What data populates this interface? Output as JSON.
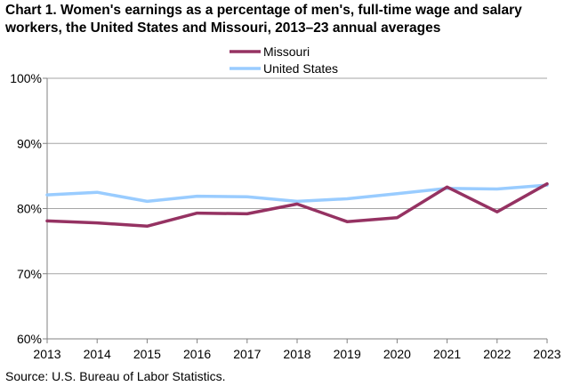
{
  "chart_data": {
    "type": "line",
    "title": "Chart 1. Women's earnings as a percentage of men's, full-time wage and salary workers, the United States and Missouri, 2013–23 annual averages",
    "xlabel": "",
    "ylabel": "",
    "categories": [
      "2013",
      "2014",
      "2015",
      "2016",
      "2017",
      "2018",
      "2019",
      "2020",
      "2021",
      "2022",
      "2023"
    ],
    "ylim": [
      60,
      100
    ],
    "yticks": [
      60,
      70,
      80,
      90,
      100
    ],
    "ytick_labels": [
      "60%",
      "70%",
      "80%",
      "90%",
      "100%"
    ],
    "grid": "horizontal",
    "legend_position": "top-center",
    "series": [
      {
        "name": "Missouri",
        "color": "#953262",
        "values": [
          78.1,
          77.8,
          77.3,
          79.3,
          79.2,
          80.7,
          78.0,
          78.6,
          83.3,
          79.5,
          83.8
        ]
      },
      {
        "name": "United States",
        "color": "#99ccff",
        "values": [
          82.1,
          82.5,
          81.1,
          81.9,
          81.8,
          81.1,
          81.5,
          82.3,
          83.1,
          83.0,
          83.6
        ]
      }
    ]
  },
  "source": "Source:  U.S. Bureau of Labor Statistics."
}
